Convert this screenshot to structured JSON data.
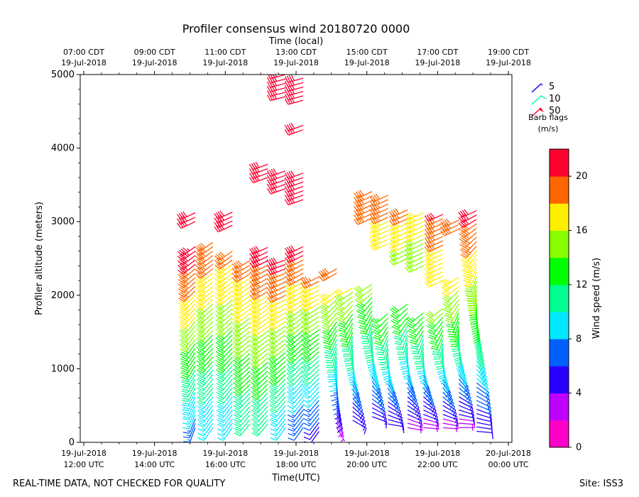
{
  "chart_data": {
    "type": "wind-barb-profile",
    "title": "Profiler consensus wind 20180720 0000",
    "top_axis_label": "Time (local)",
    "xlabel": "Time(UTC)",
    "ylabel": "Profiler altitude (meters)",
    "x_range_hours": [
      11.9,
      24.1
    ],
    "ylim": [
      0,
      5000
    ],
    "y_ticks": [
      0,
      1000,
      2000,
      3000,
      4000,
      5000
    ],
    "bottom_ticks": [
      {
        "hour": 12,
        "line1": "19-Jul-2018",
        "line2": "12:00 UTC"
      },
      {
        "hour": 14,
        "line1": "19-Jul-2018",
        "line2": "14:00 UTC"
      },
      {
        "hour": 16,
        "line1": "19-Jul-2018",
        "line2": "16:00 UTC"
      },
      {
        "hour": 18,
        "line1": "19-Jul-2018",
        "line2": "18:00 UTC"
      },
      {
        "hour": 20,
        "line1": "19-Jul-2018",
        "line2": "20:00 UTC"
      },
      {
        "hour": 22,
        "line1": "19-Jul-2018",
        "line2": "22:00 UTC"
      },
      {
        "hour": 24,
        "line1": "20-Jul-2018",
        "line2": "00:00 UTC"
      }
    ],
    "top_ticks": [
      {
        "hour": 12,
        "line1": "07:00 CDT",
        "line2": "19-Jul-2018"
      },
      {
        "hour": 14,
        "line1": "09:00 CDT",
        "line2": "19-Jul-2018"
      },
      {
        "hour": 16,
        "line1": "11:00 CDT",
        "line2": "19-Jul-2018"
      },
      {
        "hour": 18,
        "line1": "13:00 CDT",
        "line2": "19-Jul-2018"
      },
      {
        "hour": 20,
        "line1": "15:00 CDT",
        "line2": "19-Jul-2018"
      },
      {
        "hour": 22,
        "line1": "17:00 CDT",
        "line2": "19-Jul-2018"
      },
      {
        "hour": 24,
        "line1": "19:00 CDT",
        "line2": "19-Jul-2018"
      }
    ],
    "profile_times_hours": [
      15.15,
      15.65,
      16.2,
      16.7,
      17.2,
      17.7,
      18.2,
      18.65,
      19.15,
      19.6,
      20.15,
      20.6,
      21.15,
      21.6,
      22.15,
      22.6,
      23.1
    ],
    "sample_interval_m": 60,
    "profiles": [
      {
        "segments": [
          {
            "from": 200,
            "to": 2700,
            "speed_from": 7,
            "speed_to": 22,
            "dir_from": 200,
            "dir_to": 235
          },
          {
            "from": 3000,
            "to": 3150,
            "speed_from": 21,
            "speed_to": 21,
            "dir_from": 245,
            "dir_to": 245
          }
        ]
      },
      {
        "segments": [
          {
            "from": 200,
            "to": 2750,
            "speed_from": 8,
            "speed_to": 20,
            "dir_from": 215,
            "dir_to": 235
          }
        ]
      },
      {
        "segments": [
          {
            "from": 200,
            "to": 2650,
            "speed_from": 8,
            "speed_to": 19,
            "dir_from": 215,
            "dir_to": 235
          },
          {
            "from": 2950,
            "to": 3150,
            "speed_from": 20,
            "speed_to": 20,
            "dir_from": 245,
            "dir_to": 245
          }
        ]
      },
      {
        "segments": [
          {
            "from": 250,
            "to": 2500,
            "speed_from": 10,
            "speed_to": 19,
            "dir_from": 220,
            "dir_to": 240
          }
        ]
      },
      {
        "segments": [
          {
            "from": 250,
            "to": 2650,
            "speed_from": 10,
            "speed_to": 21,
            "dir_from": 220,
            "dir_to": 245
          },
          {
            "from": 3600,
            "to": 3800,
            "speed_from": 21,
            "speed_to": 21,
            "dir_from": 250,
            "dir_to": 250
          }
        ]
      },
      {
        "segments": [
          {
            "from": 200,
            "to": 2500,
            "speed_from": 8,
            "speed_to": 21,
            "dir_from": 215,
            "dir_to": 250
          },
          {
            "from": 3450,
            "to": 3700,
            "speed_from": 21,
            "speed_to": 21,
            "dir_from": 250,
            "dir_to": 250
          },
          {
            "from": 4700,
            "to": 5000,
            "speed_from": 21,
            "speed_to": 21,
            "dir_from": 255,
            "dir_to": 255
          }
        ]
      },
      {
        "segments": [
          {
            "from": 200,
            "to": 2700,
            "speed_from": 6,
            "speed_to": 21,
            "dir_from": 215,
            "dir_to": 245
          },
          {
            "from": 3300,
            "to": 3700,
            "speed_from": 21,
            "speed_to": 21,
            "dir_from": 250,
            "dir_to": 250
          },
          {
            "from": 4250,
            "to": 4350,
            "speed_from": 21,
            "speed_to": 21,
            "dir_from": 250,
            "dir_to": 250
          },
          {
            "from": 4650,
            "to": 5000,
            "speed_from": 21,
            "speed_to": 21,
            "dir_from": 255,
            "dir_to": 255
          }
        ]
      },
      {
        "segments": [
          {
            "from": 150,
            "to": 2300,
            "speed_from": 5,
            "speed_to": 19,
            "dir_from": 215,
            "dir_to": 245
          }
        ]
      },
      {
        "segments": [
          {
            "from": 200,
            "to": 2100,
            "speed_from": 3,
            "speed_to": 17,
            "dir_from": 150,
            "dir_to": 235
          },
          {
            "from": 2300,
            "to": 2400,
            "speed_from": 19,
            "speed_to": 19,
            "dir_from": 240,
            "dir_to": 240
          }
        ]
      },
      {
        "segments": [
          {
            "from": 300,
            "to": 2100,
            "speed_from": 4,
            "speed_to": 16,
            "dir_from": 120,
            "dir_to": 240
          }
        ]
      },
      {
        "segments": [
          {
            "from": 350,
            "to": 2200,
            "speed_from": 5,
            "speed_to": 15,
            "dir_from": 110,
            "dir_to": 240
          },
          {
            "from": 3050,
            "to": 3450,
            "speed_from": 19,
            "speed_to": 19,
            "dir_from": 245,
            "dir_to": 245
          }
        ]
      },
      {
        "segments": [
          {
            "from": 250,
            "to": 1800,
            "speed_from": 4,
            "speed_to": 14,
            "dir_from": 100,
            "dir_to": 235
          },
          {
            "from": 2700,
            "to": 3400,
            "speed_from": 17,
            "speed_to": 19,
            "dir_from": 245,
            "dir_to": 245
          }
        ]
      },
      {
        "segments": [
          {
            "from": 200,
            "to": 1900,
            "speed_from": 3,
            "speed_to": 14,
            "dir_from": 100,
            "dir_to": 235
          },
          {
            "from": 2500,
            "to": 3200,
            "speed_from": 15,
            "speed_to": 19,
            "dir_from": 245,
            "dir_to": 245
          }
        ]
      },
      {
        "segments": [
          {
            "from": 200,
            "to": 1800,
            "speed_from": 3,
            "speed_to": 14,
            "dir_from": 95,
            "dir_to": 235
          },
          {
            "from": 2400,
            "to": 3150,
            "speed_from": 15,
            "speed_to": 17,
            "dir_from": 245,
            "dir_to": 245
          }
        ]
      },
      {
        "segments": [
          {
            "from": 200,
            "to": 1850,
            "speed_from": 3,
            "speed_to": 15,
            "dir_from": 95,
            "dir_to": 235
          },
          {
            "from": 2200,
            "to": 3100,
            "speed_from": 16,
            "speed_to": 20,
            "dir_from": 245,
            "dir_to": 245
          }
        ]
      },
      {
        "segments": [
          {
            "from": 200,
            "to": 2250,
            "speed_from": 3,
            "speed_to": 17,
            "dir_from": 90,
            "dir_to": 240
          },
          {
            "from": 2900,
            "to": 3050,
            "speed_from": 19,
            "speed_to": 19,
            "dir_from": 245,
            "dir_to": 245
          }
        ]
      },
      {
        "segments": [
          {
            "from": 150,
            "to": 3150,
            "speed_from": 4,
            "speed_to": 21,
            "dir_from": 95,
            "dir_to": 245
          }
        ]
      }
    ],
    "barb_legend": [
      {
        "speed": 5,
        "label": "5",
        "color": "#1000ff"
      },
      {
        "speed": 10,
        "label": "10",
        "color": "#00ffa0"
      },
      {
        "speed": 50,
        "label": "50",
        "color": "#ff0030"
      }
    ],
    "barb_legend_title_1": "Barb flags",
    "barb_legend_title_2": "(m/s)",
    "colorbar": {
      "label": "Wind speed (m/s)",
      "range": [
        0,
        22
      ],
      "ticks": [
        0,
        4,
        8,
        12,
        16,
        20
      ],
      "colors": [
        "#ff00c8",
        "#c000ff",
        "#2800ff",
        "#0060ff",
        "#00e8ff",
        "#00ff90",
        "#00ff00",
        "#88ff00",
        "#ffee00",
        "#ff6600",
        "#ff0030"
      ]
    }
  },
  "footer": {
    "disclaimer": "REAL-TIME DATA, NOT CHECKED FOR QUALITY",
    "site": "Site: ISS3"
  }
}
